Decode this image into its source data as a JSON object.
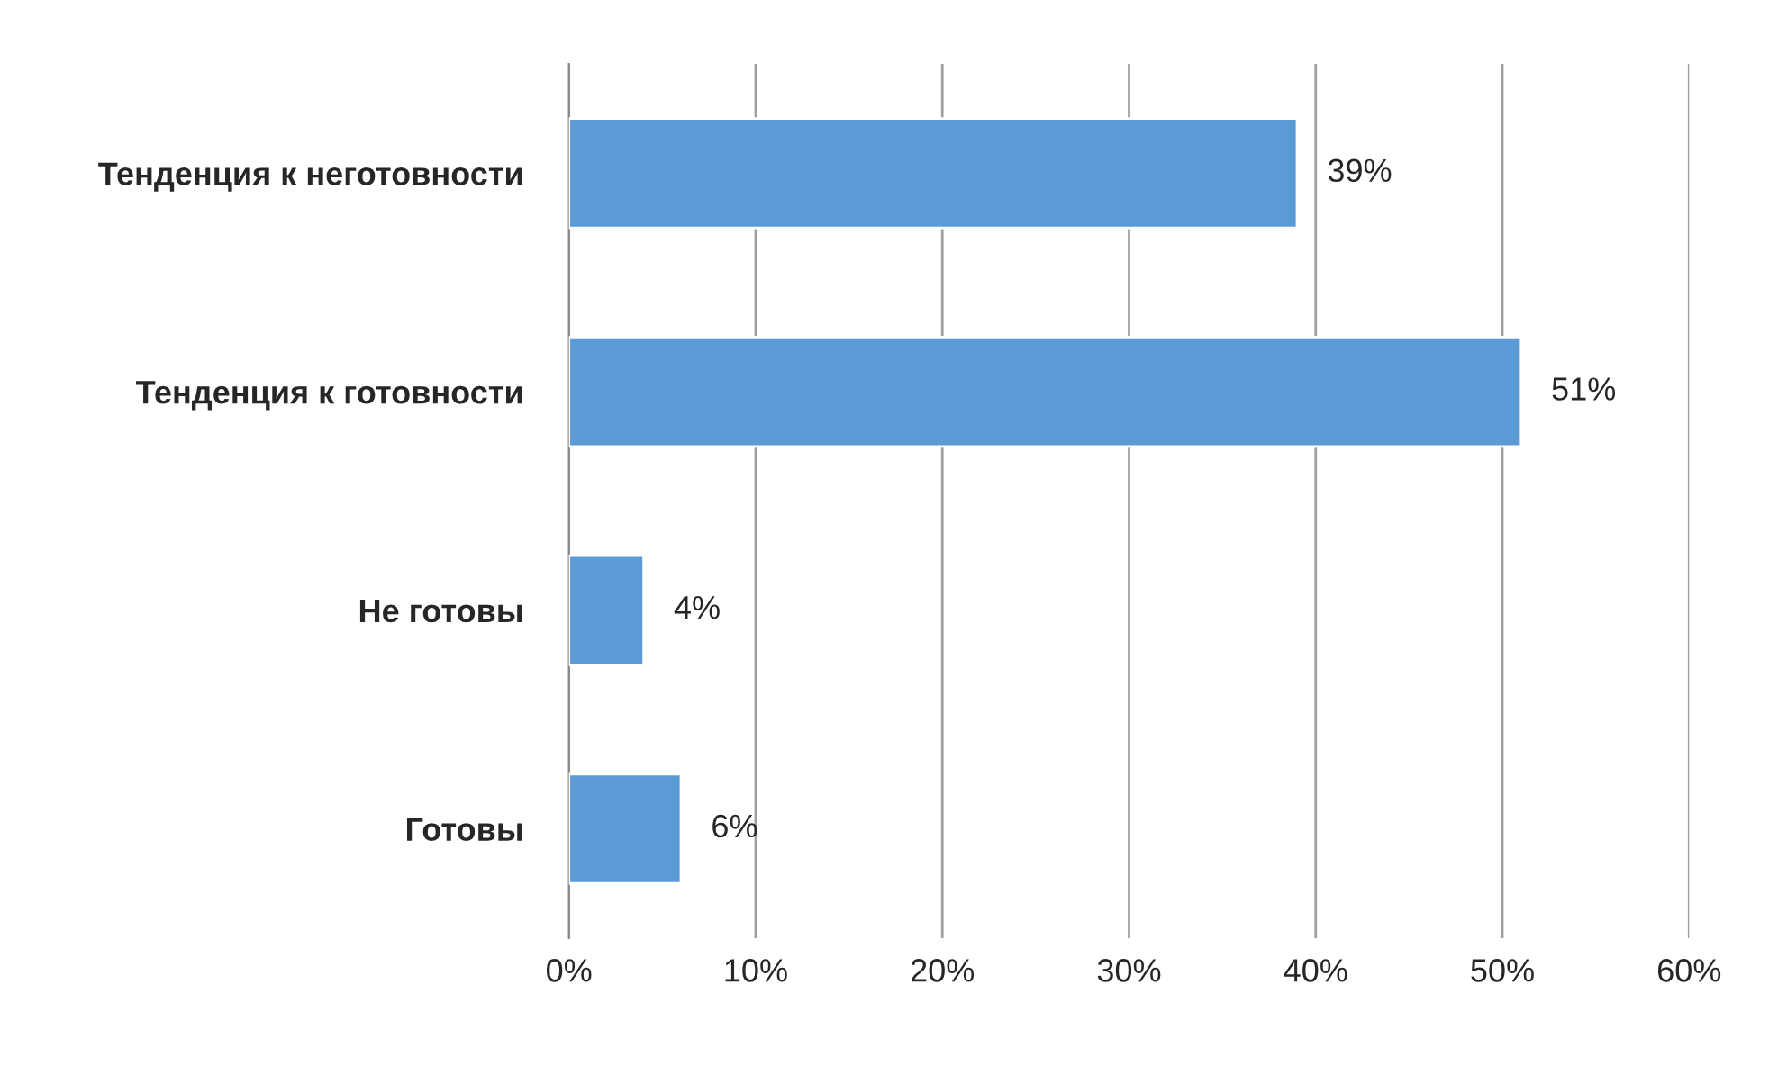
{
  "chart_data": {
    "type": "bar",
    "orientation": "horizontal",
    "categories": [
      "Тенденция к неготовности",
      "Тенденция к готовности",
      "Не готовы",
      "Готовы"
    ],
    "values": [
      39,
      51,
      4,
      6
    ],
    "value_labels": [
      "39%",
      "51%",
      "4%",
      "6%"
    ],
    "color": "#5b9bd5",
    "xlim": [
      0,
      60
    ],
    "xticks": [
      {
        "value": 0,
        "label": "0%"
      },
      {
        "value": 10,
        "label": "10%"
      },
      {
        "value": 20,
        "label": "20%"
      },
      {
        "value": 30,
        "label": "30%"
      },
      {
        "value": 40,
        "label": "40%"
      },
      {
        "value": 50,
        "label": "50%"
      },
      {
        "value": 60,
        "label": "60%"
      }
    ],
    "grid": "x",
    "legend": false
  }
}
